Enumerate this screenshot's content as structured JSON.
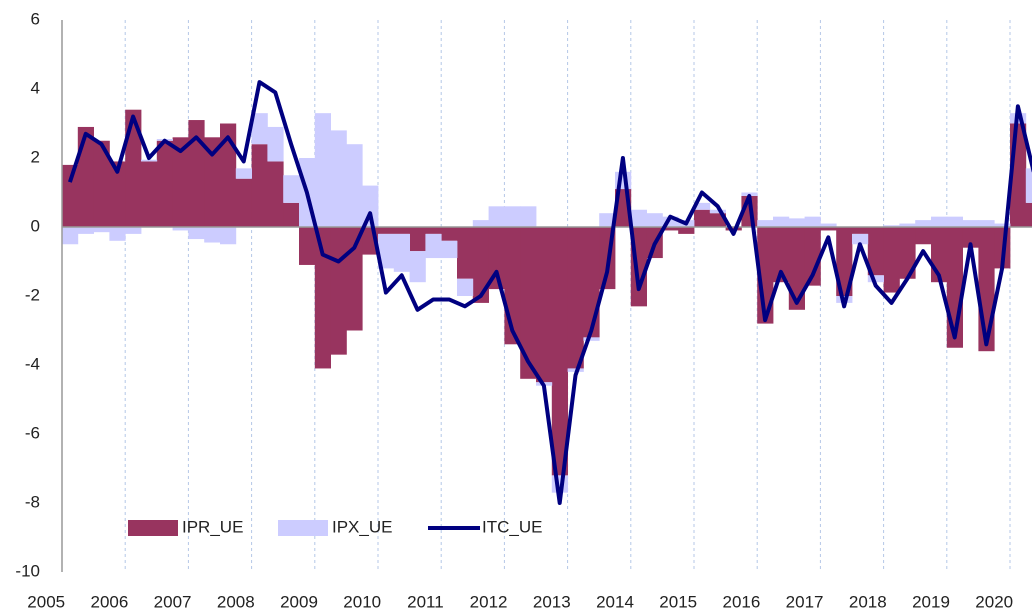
{
  "chart_data": {
    "type": "bar-line",
    "categories": [
      "2005",
      null,
      null,
      null,
      "2006",
      null,
      null,
      null,
      "2007",
      null,
      null,
      null,
      "2008",
      null,
      null,
      null,
      "2009",
      null,
      null,
      null,
      "2010",
      null,
      null,
      null,
      "2011",
      null,
      null,
      null,
      "2012",
      null,
      null,
      null,
      "2013",
      null,
      null,
      null,
      "2014",
      null,
      null,
      null,
      "2015",
      null,
      null,
      null,
      "2016",
      null,
      null,
      null,
      "2017",
      null,
      null,
      null,
      "2018",
      null,
      null,
      null,
      "2019",
      null,
      null,
      null,
      "2020",
      null
    ],
    "series": [
      {
        "name": "IPR_UE",
        "type": "bar",
        "color": "#98345f",
        "values": [
          1.8,
          2.9,
          2.5,
          1.9,
          3.4,
          1.9,
          2.5,
          2.6,
          3.1,
          2.6,
          3.0,
          1.4,
          2.4,
          1.9,
          0.7,
          -1.1,
          -4.1,
          -3.7,
          -3.0,
          -0.8,
          -0.2,
          -0.2,
          -0.7,
          -0.2,
          -0.4,
          -1.5,
          -2.2,
          -1.8,
          -3.4,
          -4.4,
          -4.5,
          -7.2,
          -4.1,
          -3.2,
          -1.8,
          1.1,
          -2.3,
          -0.9,
          -0.1,
          -0.2,
          0.5,
          0.4,
          -0.1,
          0.9,
          -2.8,
          -1.6,
          -2.4,
          -1.7,
          -0.1,
          -2.0,
          -0.2,
          -1.4,
          -1.9,
          -1.5,
          -0.5,
          -1.6,
          -3.5,
          -0.6,
          -3.6,
          -1.2,
          3.0,
          0.7
        ]
      },
      {
        "name": "IPX_UE",
        "type": "bar",
        "color": "#ccccff",
        "values": [
          -0.5,
          -0.2,
          -0.15,
          -0.4,
          -0.2,
          0.05,
          0.05,
          -0.1,
          -0.35,
          -0.45,
          -0.5,
          0.3,
          0.9,
          1.0,
          0.8,
          2.0,
          3.3,
          2.8,
          2.4,
          1.2,
          -1.0,
          -1.1,
          -0.9,
          -0.7,
          -0.5,
          -0.5,
          0.2,
          0.6,
          0.6,
          0.6,
          -0.1,
          -0.5,
          -0.1,
          -0.1,
          0.4,
          0.5,
          0.5,
          0.4,
          0.3,
          0.2,
          0.2,
          0.1,
          0.0,
          0.1,
          0.2,
          0.3,
          0.25,
          0.3,
          0.1,
          -0.2,
          -0.3,
          -0.2,
          0.05,
          0.1,
          0.2,
          0.3,
          0.3,
          0.2,
          0.2,
          0.1,
          0.3,
          1.0
        ]
      },
      {
        "name": "ITC_UE",
        "type": "line",
        "color": "#000080",
        "values": [
          1.3,
          2.7,
          2.4,
          1.6,
          3.2,
          2.0,
          2.5,
          2.2,
          2.6,
          2.1,
          2.6,
          1.9,
          4.2,
          3.9,
          2.4,
          1.0,
          -0.8,
          -1.0,
          -0.6,
          0.4,
          -1.9,
          -1.4,
          -2.4,
          -2.1,
          -2.1,
          -2.3,
          -2.0,
          -1.3,
          -3.0,
          -3.9,
          -4.6,
          -8.0,
          -4.3,
          -3.0,
          -1.3,
          2.0,
          -1.8,
          -0.5,
          0.3,
          0.1,
          1.0,
          0.6,
          -0.2,
          0.9,
          -2.7,
          -1.3,
          -2.2,
          -1.4,
          -0.3,
          -2.3,
          -0.5,
          -1.7,
          -2.2,
          -1.5,
          -0.7,
          -1.4,
          -3.2,
          -0.5,
          -3.4,
          -1.2,
          3.5,
          1.6
        ]
      }
    ],
    "ylim": [
      -10,
      6
    ],
    "yticks": [
      -10,
      -8,
      -6,
      -4,
      -2,
      0,
      2,
      4,
      6
    ],
    "grid": false,
    "legend": "bottom-left"
  }
}
